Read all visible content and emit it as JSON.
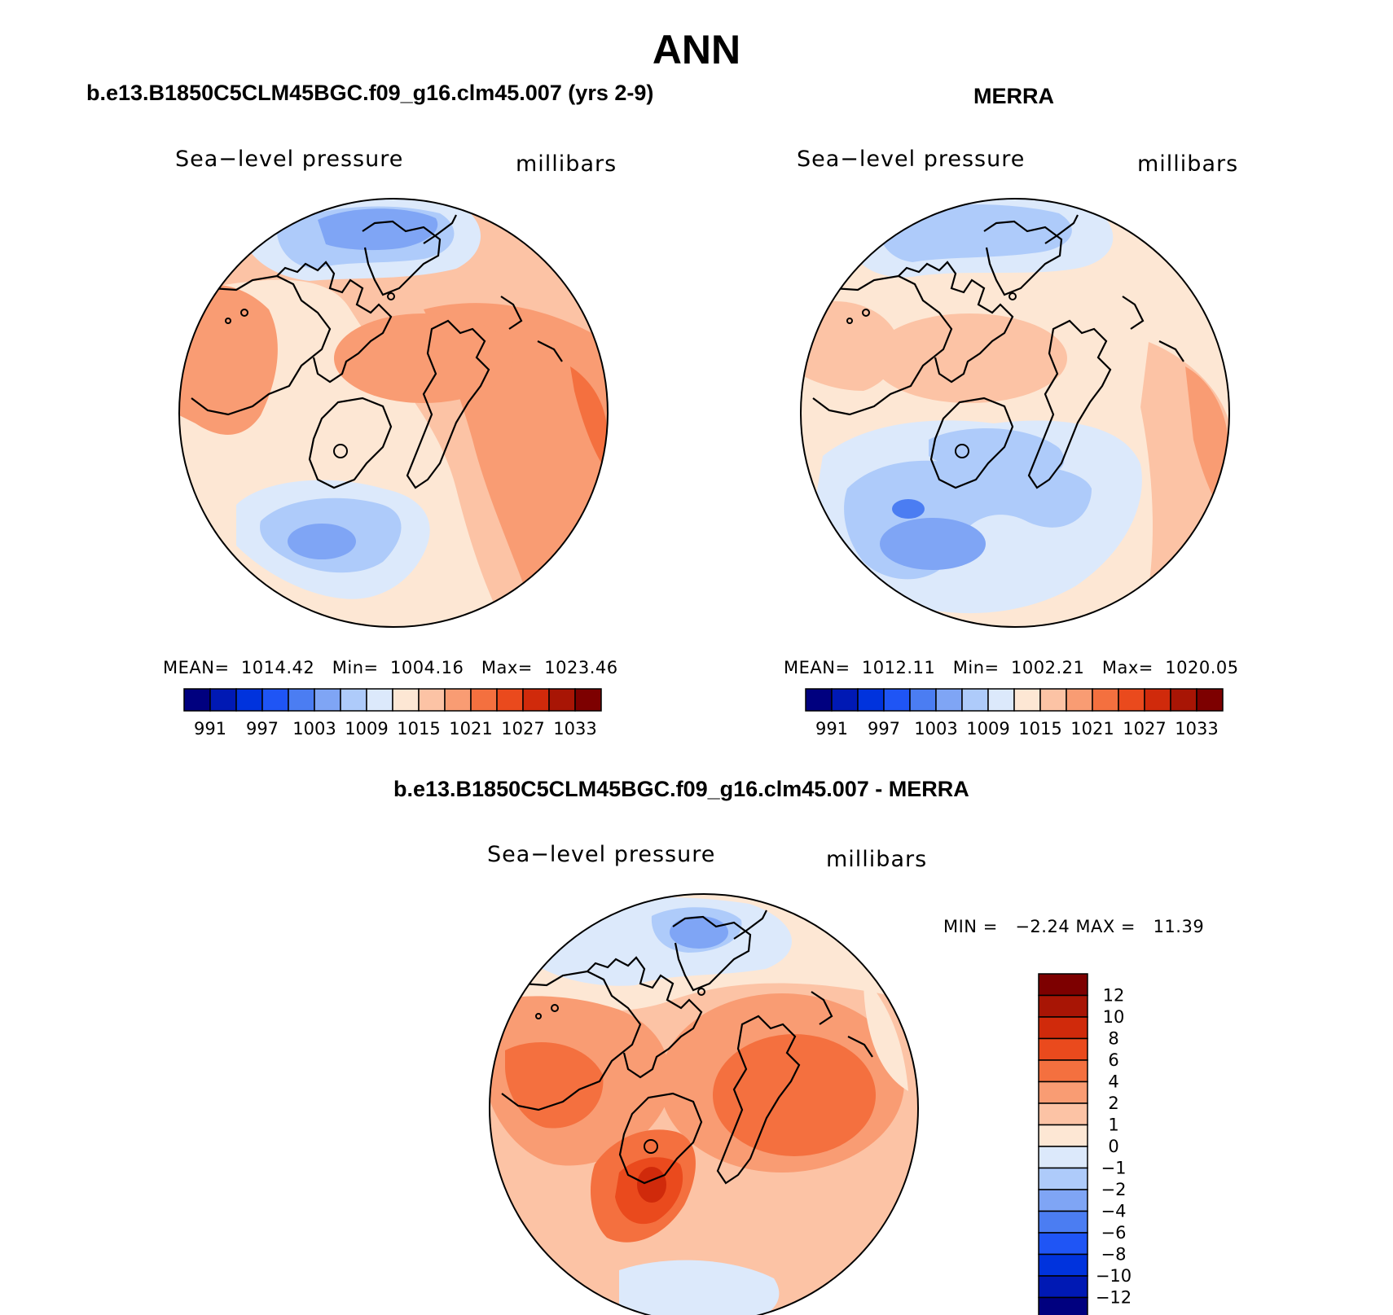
{
  "title": "ANN",
  "panels": [
    {
      "title": "b.e13.B1850C5CLM45BGC.f09_g16.clm45.007 (yrs 2-9)",
      "variable": "Sea−level pressure",
      "units": "millibars",
      "stats": {
        "mean_label": "MEAN=",
        "mean": "1014.42",
        "min_label": "Min=",
        "min": "1004.16",
        "max_label": "Max=",
        "max": "1023.46"
      }
    },
    {
      "title": "MERRA",
      "variable": "Sea−level pressure",
      "units": "millibars",
      "stats": {
        "mean_label": "MEAN=",
        "mean": "1012.11",
        "min_label": "Min=",
        "min": "1002.21",
        "max_label": "Max=",
        "max": "1020.05"
      }
    },
    {
      "title": "b.e13.B1850C5CLM45BGC.f09_g16.clm45.007 - MERRA",
      "variable": "Sea−level pressure",
      "units": "millibars",
      "stats": {
        "min_label": "MIN =",
        "min": "−2.24",
        "max_label": "MAX =",
        "max": "11.39"
      }
    }
  ],
  "colorbar_abs": {
    "colors": [
      "#00007f",
      "#0019b4",
      "#0033dd",
      "#1f55f5",
      "#4b7df2",
      "#7fa5f5",
      "#aecbfa",
      "#dce9fb",
      "#fde7d4",
      "#fcc3a5",
      "#f99c73",
      "#f4703f",
      "#ea4a1d",
      "#d02a0b",
      "#a81505",
      "#7d0000"
    ],
    "labels": [
      "991",
      "997",
      "1003",
      "1009",
      "1015",
      "1021",
      "1027",
      "1033"
    ]
  },
  "colorbar_diff": {
    "colors": [
      "#7d0000",
      "#a81505",
      "#d02a0b",
      "#ea4a1d",
      "#f4703f",
      "#f99c73",
      "#fcc3a5",
      "#fde7d4",
      "#dce9fb",
      "#aecbfa",
      "#7fa5f5",
      "#4b7df2",
      "#1f55f5",
      "#0033dd",
      "#0019b4",
      "#00007f"
    ],
    "labels": [
      "12",
      "10",
      "8",
      "6",
      "4",
      "2",
      "1",
      "0",
      "−1",
      "−2",
      "−4",
      "−6",
      "−8",
      "−10",
      "−12"
    ]
  },
  "palette": {
    "blue_dark": "#4b7df2",
    "blue_mid": "#7fa5f5",
    "blue_light": "#aecbfa",
    "blue_pale": "#dce9fb",
    "cream": "#fde7d4",
    "peach": "#fcc3a5",
    "salmon": "#f99c73",
    "orange": "#f4703f",
    "red_orange": "#ea4a1d"
  }
}
